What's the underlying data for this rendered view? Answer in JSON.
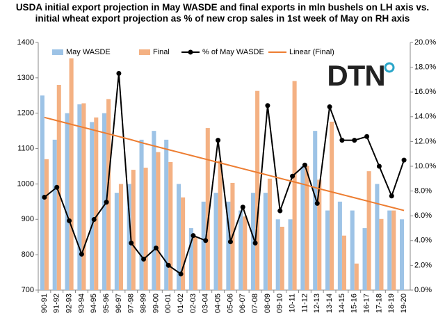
{
  "chart_data": {
    "type": "bar",
    "title": "USDA initial export projection in May WASDE and final exports in mln bushels on LH axis vs. initial wheat export projection as % of new crop sales in 1st week of May on RH axis",
    "logo": "DTN",
    "categories": [
      "90-91",
      "91-92",
      "92-93",
      "93-94",
      "94-95",
      "95-96",
      "96-97",
      "97-98",
      "98-99",
      "99-00",
      "00-01",
      "01-02",
      "02-03",
      "03-04",
      "04-05",
      "05-06",
      "06-07",
      "07-08",
      "08-09",
      "09-10",
      "10-11",
      "11-12",
      "12-13",
      "13-14",
      "14-15",
      "15-16",
      "16-17",
      "17-18",
      "18-19",
      "19-20"
    ],
    "series": [
      {
        "name": "May WASDE",
        "type": "bar",
        "color": "#9dc3e6",
        "values": [
          1250,
          1125,
          1200,
          1225,
          1175,
          1200,
          975,
          1000,
          1125,
          1150,
          1125,
          1000,
          875,
          950,
          975,
          950,
          925,
          975,
          975,
          900,
          900,
          1050,
          1150,
          925,
          950,
          925,
          875,
          1000,
          925,
          900
        ]
      },
      {
        "name": "Final",
        "type": "bar",
        "color": "#f4b183",
        "values": [
          1070,
          1280,
          1355,
          1228,
          1188,
          1240,
          1000,
          1040,
          1046,
          1090,
          1062,
          962,
          850,
          1158,
          1066,
          1003,
          908,
          1263,
          1015,
          879,
          1291,
          1051,
          1012,
          1176,
          854,
          775,
          1036,
          901,
          925,
          null
        ]
      },
      {
        "name": "% of May WASDE",
        "type": "line",
        "axis": "y2",
        "color": "#000000",
        "markers": true,
        "values": [
          7.5,
          8.3,
          5.6,
          2.9,
          5.7,
          7.1,
          17.5,
          3.8,
          2.5,
          3.4,
          2.0,
          1.3,
          4.4,
          4.0,
          12.1,
          3.9,
          6.7,
          3.8,
          14.9,
          6.4,
          9.2,
          10.1,
          7.0,
          14.8,
          12.1,
          12.1,
          12.4,
          10.0,
          7.6,
          10.5
        ]
      },
      {
        "name": "Linear (Final)",
        "type": "line",
        "color": "#ed7d31",
        "markers": false,
        "values": [
          1188,
          1179,
          1170,
          1161,
          1152,
          1143,
          1134,
          1125,
          1115,
          1106,
          1097,
          1088,
          1079,
          1070,
          1061,
          1052,
          1043,
          1034,
          1025,
          1016,
          1007,
          998,
          988,
          979,
          970,
          961,
          952,
          943,
          934,
          925
        ]
      }
    ],
    "ylim": [
      700,
      1400
    ],
    "yticks": [
      700,
      800,
      900,
      1000,
      1100,
      1200,
      1300,
      1400
    ],
    "y2lim": [
      0,
      20
    ],
    "y2ticks": [
      {
        "value": 0,
        "label": "0.0%"
      },
      {
        "value": 2,
        "label": "2.0%"
      },
      {
        "value": 4,
        "label": "4.0%"
      },
      {
        "value": 6,
        "label": "6.0%"
      },
      {
        "value": 8,
        "label": "8.0%"
      },
      {
        "value": 10,
        "label": "10.0%"
      },
      {
        "value": 12,
        "label": "12.0%"
      },
      {
        "value": 14,
        "label": "14.0%"
      },
      {
        "value": 16,
        "label": "16.0%"
      },
      {
        "value": 18,
        "label": "18.0%"
      },
      {
        "value": 20,
        "label": "20.0%"
      }
    ],
    "grid": false,
    "legend": "top"
  }
}
